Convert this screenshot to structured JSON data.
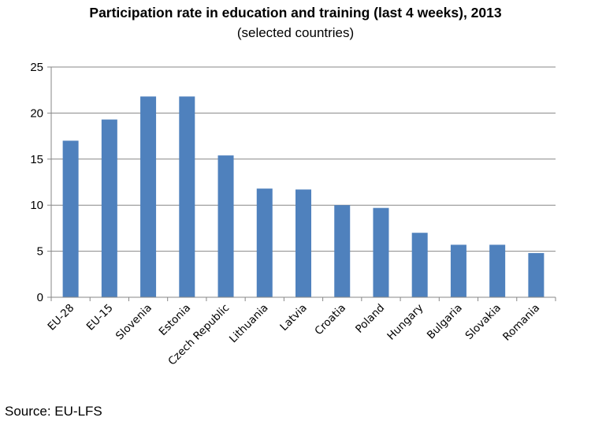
{
  "chart_data": {
    "type": "bar",
    "title": "Participation rate in education and training (last 4 weeks), 2013",
    "subtitle": "(selected countries)",
    "xlabel": "",
    "ylabel": "",
    "categories": [
      "EU-28",
      "EU-15",
      "Slovenia",
      "Estonia",
      "Czech Republic",
      "Lithuania",
      "Latvia",
      "Croatia",
      "Poland",
      "Hungary",
      "Bulgaria",
      "Slovakia",
      "Romania"
    ],
    "values": [
      17.0,
      19.3,
      21.8,
      21.8,
      15.4,
      11.8,
      11.7,
      10.0,
      9.7,
      7.0,
      5.7,
      5.7,
      4.8
    ],
    "ylim": [
      0,
      25
    ],
    "yticks": [
      0,
      5,
      10,
      15,
      20,
      25
    ],
    "grid": true,
    "bar_color": "#4f81bd"
  },
  "footer": {
    "source": "Source: EU-LFS"
  }
}
